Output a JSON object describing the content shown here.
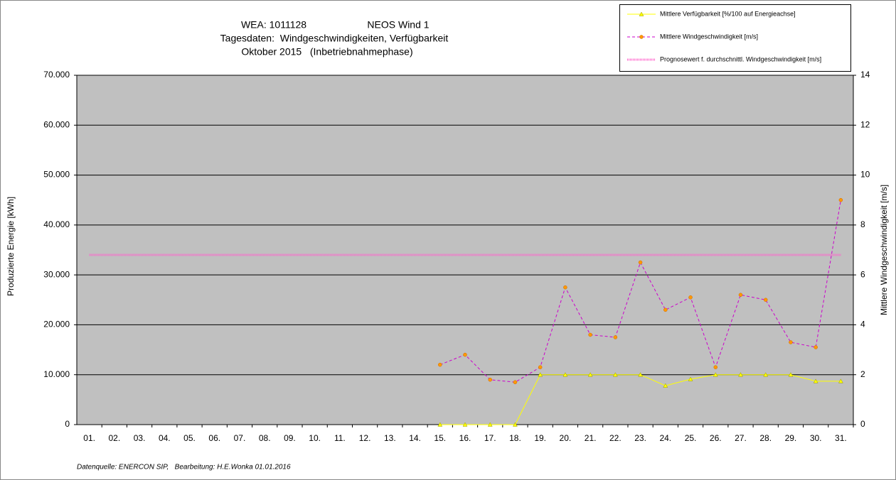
{
  "chart_data": {
    "type": "line",
    "title_lines": [
      "WEA: 1011128",
      "NEOS Wind 1",
      "Tagesdaten:  Windgeschwindigkeiten, Verfügbarkeit",
      "Oktober 2015   (Inbetriebnahmephase)"
    ],
    "ylabel": "Produzierte Energie [kWh]",
    "y2label": "Mittlere Windgeschwindigkeit [m/s]",
    "source": "Datenquelle: ENERCON SIP,   Bearbeitung: H.E.Wonka 01.01.2016",
    "categories": [
      "01.",
      "02.",
      "03.",
      "04.",
      "05.",
      "06.",
      "07.",
      "08.",
      "09.",
      "10.",
      "11.",
      "12.",
      "13.",
      "14.",
      "15.",
      "16.",
      "17.",
      "18.",
      "19.",
      "20.",
      "21.",
      "22.",
      "23.",
      "24.",
      "25.",
      "26.",
      "27.",
      "28.",
      "29.",
      "30.",
      "31."
    ],
    "ylim": [
      0,
      70000
    ],
    "yticks": [
      0,
      {
        "value": 10000,
        "label": "10.000"
      },
      {
        "value": 20000,
        "label": "20.000"
      },
      {
        "value": 30000,
        "label": "30.000"
      },
      {
        "value": 40000,
        "label": "40.000"
      },
      {
        "value": 50000,
        "label": "50.000"
      },
      {
        "value": 60000,
        "label": "60.000"
      },
      {
        "value": 70000,
        "label": "70.000"
      }
    ],
    "y2lim": [
      0,
      14
    ],
    "y2ticks": [
      0,
      2,
      4,
      6,
      8,
      10,
      12,
      14
    ],
    "grid": true,
    "legend": "top-right",
    "series": [
      {
        "name": "Mittlere Verfügbarkeit [%/100 auf Energieachse]",
        "color": "#ffff00",
        "marker": "triangle",
        "marker_color": "#ffff00",
        "dash": "solid",
        "values": [
          null,
          null,
          null,
          null,
          null,
          null,
          null,
          null,
          null,
          null,
          null,
          null,
          null,
          null,
          0,
          0,
          0,
          0,
          10000,
          10000,
          10000,
          10000,
          10000,
          7800,
          9100,
          10000,
          10000,
          10000,
          10000,
          8700,
          8700
        ]
      },
      {
        "name": "Mittlere Windgeschwindigkeit [m/s]",
        "color": "#cc00cc",
        "marker": "circle",
        "marker_color": "#ff9900",
        "dash": "dashed",
        "axis": "y2",
        "values": [
          null,
          null,
          null,
          null,
          null,
          null,
          null,
          null,
          null,
          null,
          null,
          null,
          null,
          null,
          2.4,
          2.8,
          1.8,
          1.7,
          2.3,
          5.5,
          3.6,
          3.5,
          6.5,
          4.6,
          5.1,
          2.3,
          5.2,
          5.0,
          3.3,
          3.1,
          9.0
        ]
      },
      {
        "name": "Prognosewert f. durchschnittl. Windgeschwindigkeit [m/s]",
        "color": "#ff66cc",
        "marker": "none",
        "dash": "dotted",
        "axis": "y2",
        "values": [
          6.8,
          6.8,
          6.8,
          6.8,
          6.8,
          6.8,
          6.8,
          6.8,
          6.8,
          6.8,
          6.8,
          6.8,
          6.8,
          6.8,
          6.8,
          6.8,
          6.8,
          6.8,
          6.8,
          6.8,
          6.8,
          6.8,
          6.8,
          6.8,
          6.8,
          6.8,
          6.8,
          6.8,
          6.8,
          6.8,
          6.8
        ]
      }
    ]
  }
}
